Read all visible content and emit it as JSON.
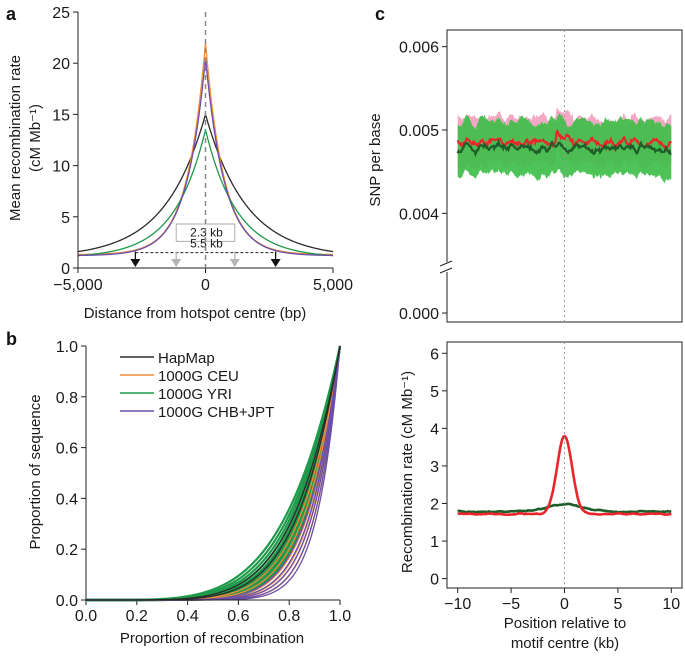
{
  "colors": {
    "hapmap": "#2b2b2b",
    "ceu": "#f08a3c",
    "yri": "#1e9a4a",
    "chb": "#6a4fa8",
    "red": "#e8262b",
    "darkgreen": "#1f5e2a",
    "green_band": "#3fbf4a",
    "pink_band": "#f2a3c0",
    "grey_arrow": "#b5b5b5"
  },
  "chart_data": [
    {
      "panel": "a",
      "type": "line",
      "xlabel": "Distance from hotspot centre (bp)",
      "ylabel": "Mean recombination rate",
      "ylabel_units": "(cM Mb⁻¹)",
      "xlim": [
        -5000,
        5000
      ],
      "ylim": [
        0,
        25
      ],
      "xticks": [
        -5000,
        0,
        5000
      ],
      "xtick_labels": [
        "−5,000",
        "0",
        "5,000"
      ],
      "yticks": [
        0,
        5,
        10,
        15,
        20,
        25
      ],
      "ytick_labels": [
        "0",
        "5",
        "10",
        "15",
        "20",
        "25"
      ],
      "series": [
        {
          "name": "HapMap",
          "color_key": "hapmap",
          "peak": 15.0,
          "base": 1.0,
          "halfwidth": 1100
        },
        {
          "name": "1000G CEU",
          "color_key": "ceu",
          "peak": 22.0,
          "base": 1.3,
          "halfwidth": 500
        },
        {
          "name": "1000G YRI",
          "color_key": "yri",
          "peak": 13.5,
          "base": 1.0,
          "halfwidth": 850
        },
        {
          "name": "1000G CHB+JPT",
          "color_key": "chb",
          "peak": 20.5,
          "base": 1.2,
          "halfwidth": 520
        }
      ],
      "annotations": [
        {
          "text": "2.3 kb",
          "y": 2.6,
          "x_from": -1150,
          "x_to": 1150
        },
        {
          "text": "5.5 kb",
          "y": 1.5,
          "x_from": -2750,
          "x_to": 2750
        }
      ],
      "arrows_black_x": [
        -2750,
        2750
      ],
      "arrows_grey_x": [
        -1150,
        1150
      ]
    },
    {
      "panel": "b",
      "type": "line",
      "xlabel": "Proportion of recombination",
      "ylabel": "Proportion of sequence",
      "xlim": [
        0,
        1
      ],
      "ylim": [
        0,
        1
      ],
      "xticks": [
        0,
        0.2,
        0.4,
        0.6,
        0.8,
        1.0
      ],
      "xtick_labels": [
        "0.0",
        "0.2",
        "0.4",
        "0.6",
        "0.8",
        "1.0"
      ],
      "yticks": [
        0,
        0.2,
        0.4,
        0.6,
        0.8,
        1.0
      ],
      "ytick_labels": [
        "0.0",
        "0.2",
        "0.4",
        "0.6",
        "0.8",
        "1.0"
      ],
      "legend": [
        "HapMap",
        "1000G CEU",
        "1000G YRI",
        "1000G CHB+JPT"
      ],
      "legend_position": "top-right",
      "series": [
        {
          "name": "HapMap",
          "color_key": "hapmap",
          "exponents": [
            5.5,
            6.0
          ]
        },
        {
          "name": "1000G CEU",
          "color_key": "ceu",
          "exponents": [
            6.5,
            7.2,
            8.0,
            8.8,
            9.5,
            10.5
          ]
        },
        {
          "name": "1000G YRI",
          "color_key": "yri",
          "exponents": [
            4.6,
            4.9,
            5.2,
            5.5,
            5.8,
            6.1,
            6.4,
            6.7,
            7.0,
            7.3,
            7.6,
            7.9
          ]
        },
        {
          "name": "1000G CHB+JPT",
          "color_key": "chb",
          "exponents": [
            7.8,
            8.6,
            9.4,
            10.4,
            11.5
          ]
        }
      ]
    },
    {
      "panel": "c-top",
      "type": "line",
      "ylabel": "SNP per base",
      "ylim": [
        0.0035,
        0.0062
      ],
      "yticks": [
        0.004,
        0.005,
        0.006
      ],
      "ytick_labels": [
        "0.004",
        "0.005",
        "0.006"
      ],
      "break_tick_label": "0.000",
      "xlim": [
        -11,
        11
      ],
      "series": [
        {
          "name": "red",
          "color_key": "red",
          "mean": 0.00485,
          "band": 0.00035
        },
        {
          "name": "darkgreen",
          "color_key": "darkgreen",
          "mean": 0.00478,
          "band": 0.00032
        }
      ]
    },
    {
      "panel": "c-bottom",
      "type": "line",
      "xlabel": "Position relative to",
      "xlabel_line2": "motif centre (kb)",
      "ylabel": "Recombination rate (cM Mb⁻¹)",
      "xlim": [
        -11,
        11
      ],
      "ylim": [
        -0.25,
        6.3
      ],
      "xticks": [
        -10,
        -5,
        0,
        5,
        10
      ],
      "xtick_labels": [
        "−10",
        "−5",
        "0",
        "5",
        "10"
      ],
      "yticks": [
        0,
        1,
        2,
        3,
        4,
        5,
        6
      ],
      "ytick_labels": [
        "0",
        "1",
        "2",
        "3",
        "4",
        "5",
        "6"
      ],
      "series": [
        {
          "name": "red",
          "color_key": "red",
          "base": 1.72,
          "peak": 3.8,
          "halfwidth": 0.7
        },
        {
          "name": "darkgreen",
          "color_key": "darkgreen",
          "base": 1.78,
          "peak": 1.98,
          "halfwidth": 1.6
        }
      ]
    }
  ],
  "panel_labels": {
    "a": "a",
    "b": "b",
    "c": "c"
  }
}
